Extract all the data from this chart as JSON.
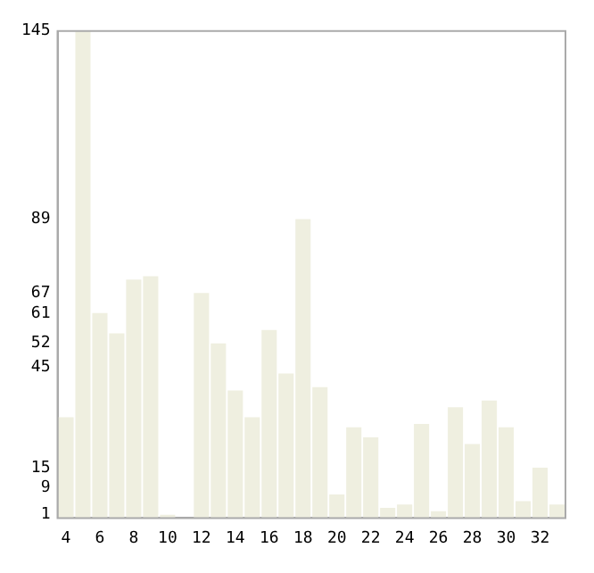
{
  "chart_data": {
    "type": "bar",
    "categories": [
      "4",
      null,
      "6",
      null,
      "8",
      null,
      "10",
      null,
      "12",
      null,
      "14",
      null,
      "16",
      null,
      "18",
      null,
      "20",
      null,
      "22",
      null,
      "24",
      null,
      "26",
      null,
      "28",
      null,
      "30",
      null,
      "32",
      null
    ],
    "values": [
      30,
      145,
      61,
      55,
      71,
      72,
      1,
      null,
      67,
      52,
      38,
      30,
      56,
      43,
      89,
      39,
      7,
      27,
      24,
      3,
      4,
      28,
      2,
      33,
      22,
      35,
      27,
      5,
      15,
      4
    ],
    "color": "#efefe0",
    "ylim": [
      0,
      145
    ],
    "yticks": [
      1,
      9,
      15,
      45,
      52,
      61,
      67,
      89,
      145
    ],
    "grid": false,
    "legend": false
  }
}
